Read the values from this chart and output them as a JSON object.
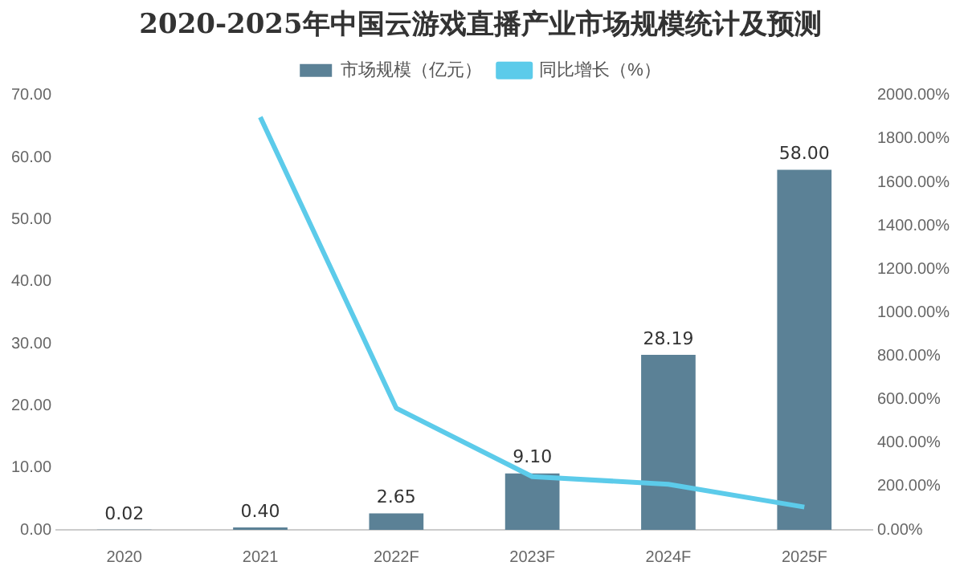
{
  "chart_data": {
    "type": "bar",
    "title": "2020-2025年中国云游戏直播产业市场规模统计及预测",
    "categories": [
      "2020",
      "2021",
      "2022F",
      "2023F",
      "2024F",
      "2025F"
    ],
    "series": [
      {
        "name": "市场规模（亿元）",
        "color": "#5b8196",
        "values": [
          0.02,
          0.4,
          2.65,
          9.1,
          28.19,
          58.0
        ],
        "value_labels": [
          "0.02",
          "0.40",
          "2.65",
          "9.10",
          "28.19",
          "58.00"
        ]
      },
      {
        "name": "同比增长（%）",
        "type": "line",
        "axis": "y2",
        "color": "#5ccbea",
        "values": [
          null,
          1900,
          560,
          245,
          210,
          105
        ]
      }
    ],
    "ylim": [
      0,
      70
    ],
    "yticks": [
      {
        "value": 0,
        "label": "0.00"
      },
      {
        "value": 10,
        "label": "10.00"
      },
      {
        "value": 20,
        "label": "20.00"
      },
      {
        "value": 30,
        "label": "30.00"
      },
      {
        "value": 40,
        "label": "40.00"
      },
      {
        "value": 50,
        "label": "50.00"
      },
      {
        "value": 60,
        "label": "60.00"
      },
      {
        "value": 70,
        "label": "70.00"
      }
    ],
    "y2lim": [
      0,
      2000
    ],
    "y2ticks": [
      {
        "value": 0,
        "label": "0.00%"
      },
      {
        "value": 200,
        "label": "200.00%"
      },
      {
        "value": 400,
        "label": "400.00%"
      },
      {
        "value": 600,
        "label": "600.00%"
      },
      {
        "value": 800,
        "label": "800.00%"
      },
      {
        "value": 1000,
        "label": "1000.00%"
      },
      {
        "value": 1200,
        "label": "1200.00%"
      },
      {
        "value": 1400,
        "label": "1400.00%"
      },
      {
        "value": 1600,
        "label": "1600.00%"
      },
      {
        "value": 1800,
        "label": "1800.00%"
      },
      {
        "value": 2000,
        "label": "2000.00%"
      }
    ],
    "legend": "top",
    "grid": false,
    "marker": "none"
  }
}
